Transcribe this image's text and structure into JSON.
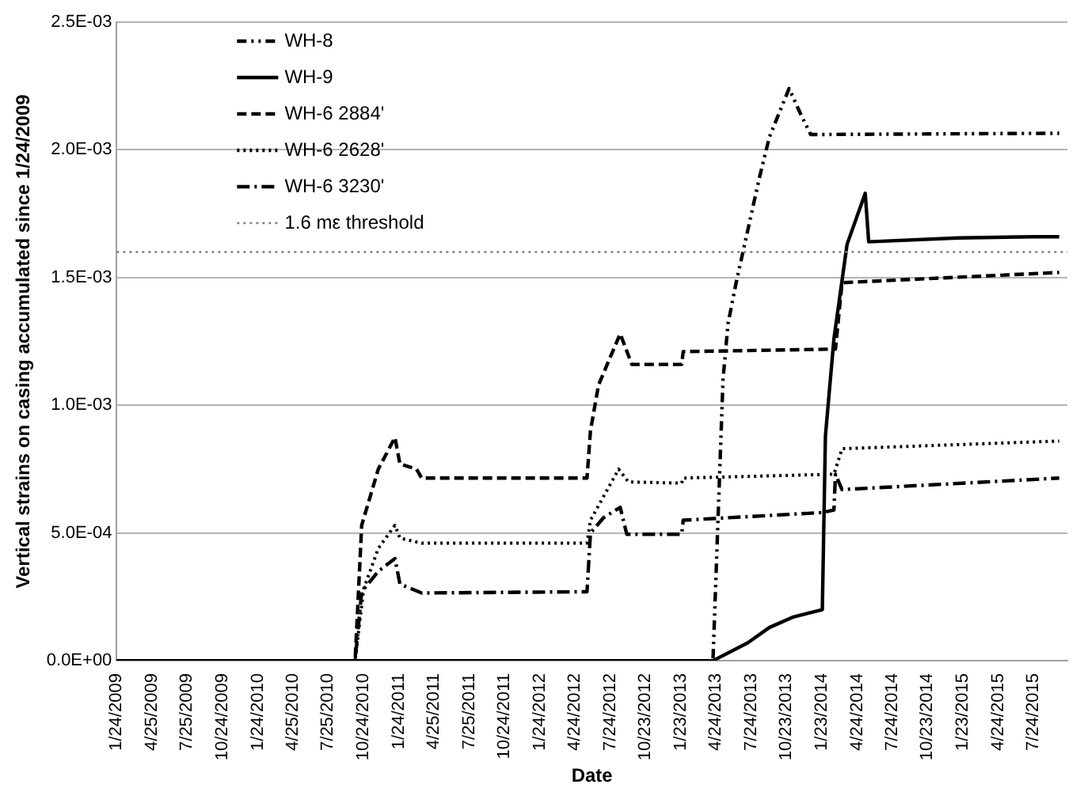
{
  "chart_data": {
    "type": "line",
    "xlabel": "Date",
    "ylabel": "Vertical strains on casing accumulated since 1/24/2009",
    "legend": "top left",
    "grid": "y",
    "marker": "none",
    "xlim": [
      "2009-01-24",
      "2015-10-20"
    ],
    "xticks": [
      {
        "value": "2009-01-24",
        "label": "1/24/2009"
      },
      {
        "value": "2009-04-25",
        "label": "4/25/2009"
      },
      {
        "value": "2009-07-25",
        "label": "7/25/2009"
      },
      {
        "value": "2009-10-24",
        "label": "10/24/2009"
      },
      {
        "value": "2010-01-24",
        "label": "1/24/2010"
      },
      {
        "value": "2010-04-25",
        "label": "4/25/2010"
      },
      {
        "value": "2010-07-25",
        "label": "7/25/2010"
      },
      {
        "value": "2010-10-24",
        "label": "10/24/2010"
      },
      {
        "value": "2011-01-24",
        "label": "1/24/2011"
      },
      {
        "value": "2011-04-25",
        "label": "4/25/2011"
      },
      {
        "value": "2011-07-25",
        "label": "7/25/2011"
      },
      {
        "value": "2011-10-24",
        "label": "10/24/2011"
      },
      {
        "value": "2012-01-24",
        "label": "1/24/2012"
      },
      {
        "value": "2012-04-24",
        "label": "4/24/2012"
      },
      {
        "value": "2012-07-24",
        "label": "7/24/2012"
      },
      {
        "value": "2012-10-23",
        "label": "10/23/2012"
      },
      {
        "value": "2013-01-23",
        "label": "1/23/2013"
      },
      {
        "value": "2013-04-24",
        "label": "4/24/2013"
      },
      {
        "value": "2013-07-24",
        "label": "7/24/2013"
      },
      {
        "value": "2013-10-23",
        "label": "10/23/2013"
      },
      {
        "value": "2014-01-23",
        "label": "1/23/2014"
      },
      {
        "value": "2014-04-24",
        "label": "4/24/2014"
      },
      {
        "value": "2014-07-24",
        "label": "7/24/2014"
      },
      {
        "value": "2014-10-23",
        "label": "10/23/2014"
      },
      {
        "value": "2015-01-23",
        "label": "1/23/2015"
      },
      {
        "value": "2015-04-24",
        "label": "4/24/2015"
      },
      {
        "value": "2015-07-24",
        "label": "7/24/2015"
      }
    ],
    "ylim": [
      0,
      0.0025
    ],
    "yticks": [
      {
        "value": 0,
        "label": "0.0E+00"
      },
      {
        "value": 0.0005,
        "label": "5.0E-04"
      },
      {
        "value": 0.001,
        "label": "1.0E-03"
      },
      {
        "value": 0.0015,
        "label": "1.5E-03"
      },
      {
        "value": 0.002,
        "label": "2.0E-03"
      },
      {
        "value": 0.0025,
        "label": "2.5E-03"
      }
    ],
    "ref_lines": [
      {
        "axis": "y",
        "value": 0.0016,
        "label": "1.6 mε threshold",
        "color": "#808080",
        "line_style": "dotted"
      }
    ],
    "series": [
      {
        "name": "WH-8",
        "color": "#000000",
        "line_style": "dashdotdot",
        "x": [
          "2009-01-24",
          "2013-04-16",
          "2013-05-12",
          "2013-05-25",
          "2013-06-15",
          "2013-08-14",
          "2013-09-09",
          "2013-10-30",
          "2013-11-29",
          "2013-12-25",
          "2015-09-29"
        ],
        "values": [
          0,
          0,
          0.0011,
          0.00132,
          0.00148,
          0.00189,
          0.00205,
          0.00224,
          0.00214,
          0.00206,
          0.002065
        ]
      },
      {
        "name": "WH-9",
        "color": "#000000",
        "line_style": "solid",
        "x": [
          "2009-01-24",
          "2013-04-16",
          "2013-07-15",
          "2013-09-09",
          "2013-11-08",
          "2014-01-24",
          "2014-02-01",
          "2014-02-23",
          "2014-03-29",
          "2014-05-15",
          "2014-05-24",
          "2015-01-10",
          "2015-07-26",
          "2015-09-29"
        ],
        "values": [
          0,
          0,
          7e-05,
          0.00013,
          0.00017,
          0.0002,
          0.00088,
          0.00126,
          0.00163,
          0.00183,
          0.00164,
          0.001655,
          0.00166,
          0.00166
        ]
      },
      {
        "name": "WH-6 2884'",
        "color": "#000000",
        "line_style": "dashed",
        "x": [
          "2009-01-24",
          "2010-10-03",
          "2010-10-20",
          "2010-12-02",
          "2011-01-14",
          "2011-01-27",
          "2011-03-11",
          "2011-03-24",
          "2012-05-25",
          "2012-06-03",
          "2012-06-24",
          "2012-08-19",
          "2012-09-18",
          "2013-01-25",
          "2013-01-29",
          "2014-02-27",
          "2014-03-16",
          "2015-09-29"
        ],
        "values": [
          0,
          0,
          0.00053,
          0.00075,
          0.000874,
          0.00077,
          0.00075,
          0.000715,
          0.000715,
          0.0009,
          0.00108,
          0.00128,
          0.00116,
          0.00116,
          0.00121,
          0.00122,
          0.00148,
          0.00152
        ]
      },
      {
        "name": "WH-6 2628'",
        "color": "#000000",
        "line_style": "dotted",
        "x": [
          "2009-01-24",
          "2010-10-03",
          "2010-10-25",
          "2010-12-02",
          "2011-01-14",
          "2011-01-27",
          "2011-03-24",
          "2012-05-25",
          "2012-06-03",
          "2012-08-15",
          "2012-09-09",
          "2013-01-25",
          "2013-01-29",
          "2014-02-23",
          "2014-03-16",
          "2015-09-29"
        ],
        "values": [
          0,
          0,
          0.00028,
          0.00044,
          0.00053,
          0.00048,
          0.00046,
          0.00046,
          0.00055,
          0.00075,
          0.0007,
          0.000695,
          0.000715,
          0.00073,
          0.00083,
          0.00086
        ]
      },
      {
        "name": "WH-6 3230'",
        "color": "#000000",
        "line_style": "dashdot",
        "x": [
          "2009-01-24",
          "2010-10-03",
          "2010-10-20",
          "2010-12-02",
          "2011-01-14",
          "2011-01-27",
          "2011-03-24",
          "2012-05-25",
          "2012-06-03",
          "2012-07-07",
          "2012-08-19",
          "2012-09-05",
          "2013-01-25",
          "2013-01-29",
          "2014-01-24",
          "2014-02-23",
          "2014-02-27",
          "2014-03-16",
          "2015-09-29"
        ],
        "values": [
          0,
          0,
          0.00027,
          0.00035,
          0.0004,
          0.0003,
          0.000265,
          0.00027,
          0.0005,
          0.00056,
          0.0006,
          0.000495,
          0.000495,
          0.00055,
          0.00058,
          0.00059,
          0.00073,
          0.00067,
          0.000715
        ]
      }
    ]
  }
}
